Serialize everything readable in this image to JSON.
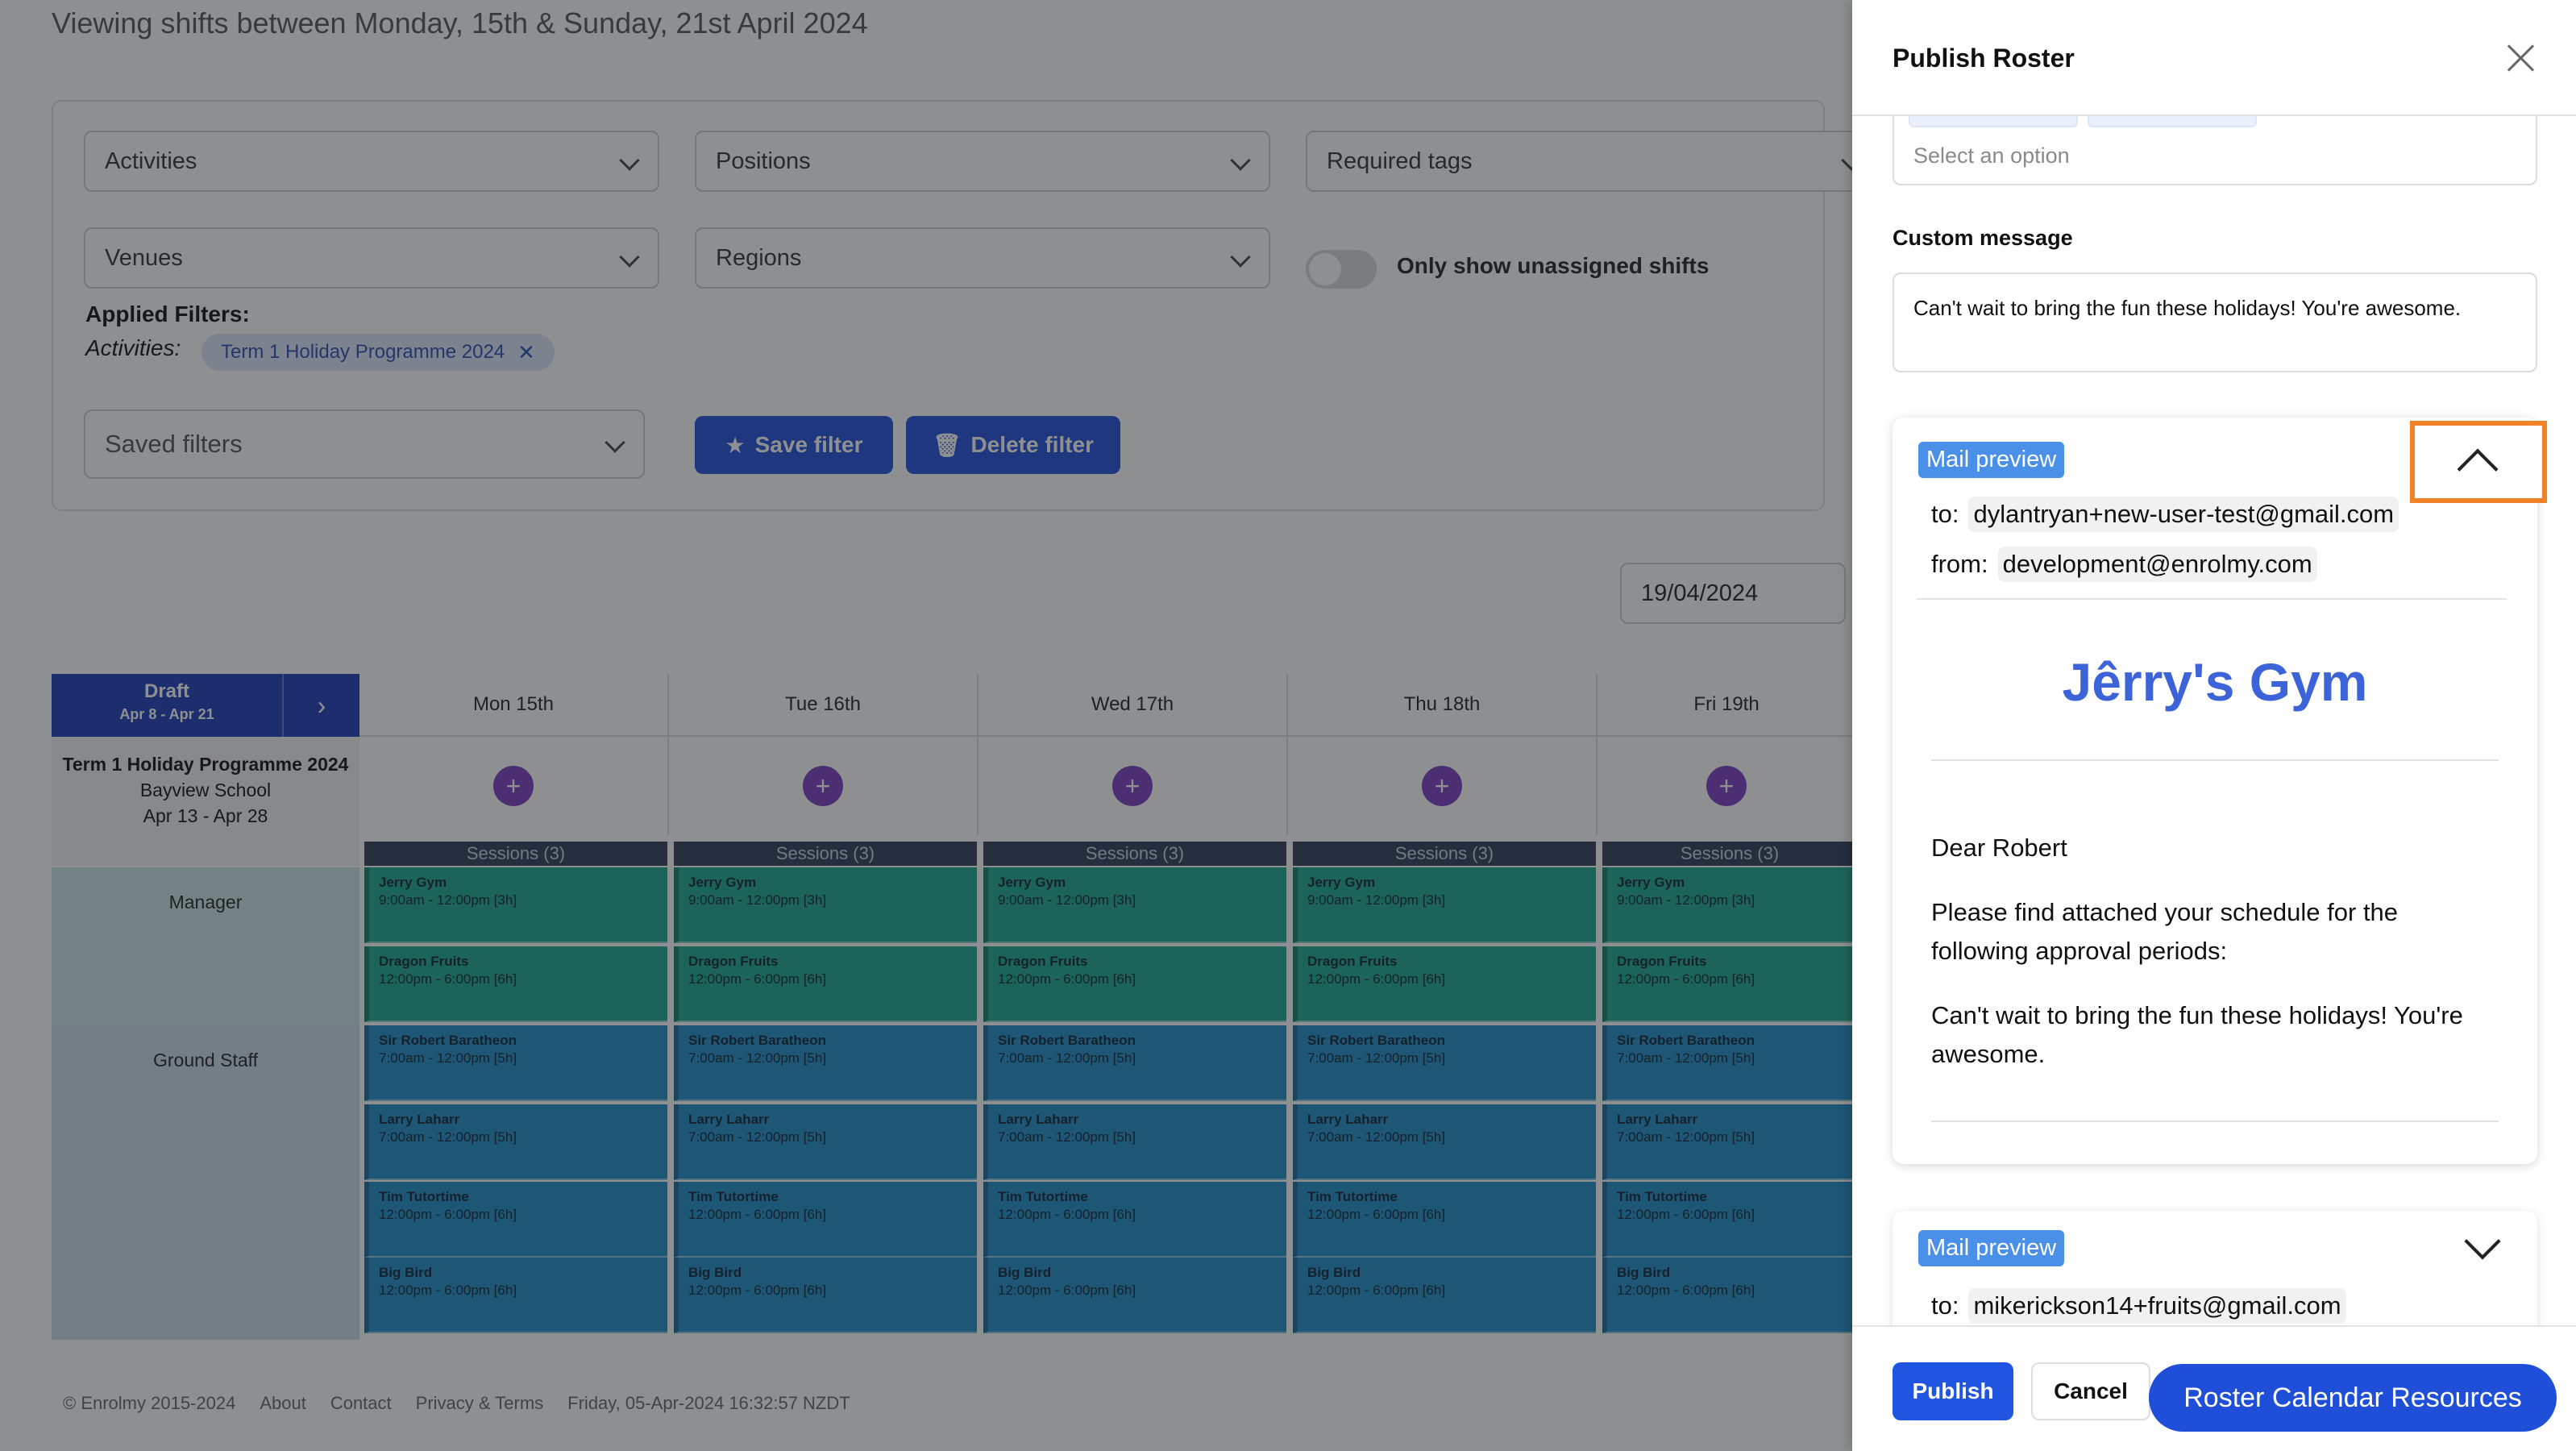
{
  "background": {
    "date_range_title": "Viewing shifts between Monday, 15th & Sunday, 21st April 2024",
    "filters": {
      "activities": "Activities",
      "positions": "Positions",
      "required_tags": "Required tags",
      "venues": "Venues",
      "regions": "Regions",
      "only_unassigned": "Only show unassigned shifts",
      "only_unassigned_on": false,
      "applied_title": "Applied Filters:",
      "applied_key": "Activities:",
      "applied_chip": "Term 1 Holiday Programme 2024",
      "saved_filters": "Saved filters",
      "save_filter": "Save filter",
      "delete_filter": "Delete filter"
    },
    "date_value": "19/04/2024",
    "roster": {
      "draft_label": "Draft",
      "draft_range": "Apr 8 - Apr 21",
      "draft_arrow": "›",
      "days": [
        "Mon 15th",
        "Tue 16th",
        "Wed 17th",
        "Thu 18th",
        "Fri 19th"
      ],
      "program_name": "Term 1 Holiday Programme 2024",
      "program_venue": "Bayview School",
      "program_dates": "Apr 13 - Apr 28",
      "add_symbol": "+",
      "sessions_label": "Sessions (3)",
      "roles": [
        "Manager",
        "Ground Staff"
      ],
      "shifts": [
        {
          "name": "Jerry Gym",
          "time": "9:00am - 12:00pm [3h]",
          "role": "Manager"
        },
        {
          "name": "Dragon Fruits",
          "time": "12:00pm - 6:00pm [6h]",
          "role": "Manager"
        },
        {
          "name": "Sir Robert Baratheon",
          "time": "7:00am - 12:00pm [5h]",
          "role": "Ground Staff"
        },
        {
          "name": "Larry Laharr",
          "time": "7:00am - 12:00pm [5h]",
          "role": "Ground Staff"
        },
        {
          "name": "Tim Tutortime",
          "time": "12:00pm - 6:00pm [6h]",
          "role": "Ground Staff"
        },
        {
          "name": "Big Bird",
          "time": "12:00pm - 6:00pm [6h]",
          "role": "Ground Staff"
        }
      ]
    },
    "footer": {
      "copyright": "© Enrolmy 2015-2024",
      "about": "About",
      "contact": "Contact",
      "privacy": "Privacy & Terms",
      "timestamp": "Friday, 05-Apr-2024 16:32:57 NZDT"
    }
  },
  "panel": {
    "title": "Publish Roster",
    "select_placeholder": "Select an option",
    "custom_message_label": "Custom message",
    "custom_message_value": "Can't wait to bring the fun these holidays! You're awesome.",
    "preview1": {
      "badge": "Mail preview",
      "to_label": "to:",
      "to": "dylantryan+new-user-test@gmail.com",
      "from_label": "from:",
      "from": "development@enrolmy.com",
      "brand": "Jêrry's Gym",
      "greeting": "Dear Robert",
      "body": "Please find attached your schedule for the following approval periods:",
      "message": "Can't wait to bring the fun these holidays! You're awesome."
    },
    "preview2": {
      "badge": "Mail preview",
      "to_label": "to:",
      "to": "mikerickson14+fruits@gmail.com"
    },
    "publish": "Publish",
    "cancel": "Cancel",
    "resources": "Roster Calendar Resources"
  },
  "colors": {
    "accent": "#1f4fd8",
    "shift_green": "#1aa98f",
    "shift_blue": "#1f8ec8",
    "highlight": "#f0822a"
  }
}
